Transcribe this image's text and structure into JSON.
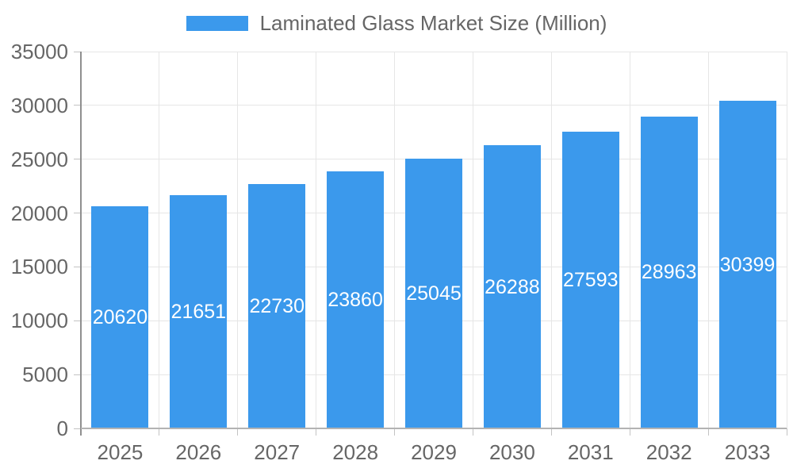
{
  "legend": {
    "label": "Laminated Glass Market Size (Million)"
  },
  "colors": {
    "bar": "#3B99EC",
    "grid": "#E6E6E6",
    "axis_y": "#8F8F8F",
    "axis_x": "#B3B3B3",
    "tick": "#C3C3C3",
    "tick_label": "#666666",
    "value_label": "#FFFFFF"
  },
  "chart_data": {
    "type": "bar",
    "title": "",
    "legend_label": "Laminated Glass Market Size (Million)",
    "legend_position": "top",
    "categories": [
      "2025",
      "2026",
      "2027",
      "2028",
      "2029",
      "2030",
      "2031",
      "2032",
      "2033"
    ],
    "values": [
      20620,
      21651,
      22730,
      23860,
      25045,
      26288,
      27593,
      28963,
      30399
    ],
    "xlabel": "",
    "ylabel": "",
    "ylim": [
      0,
      35000
    ],
    "ytick_step": 5000,
    "yticks": [
      0,
      5000,
      10000,
      15000,
      20000,
      25000,
      30000,
      35000
    ],
    "grid": true,
    "value_labels": "inside-center"
  }
}
